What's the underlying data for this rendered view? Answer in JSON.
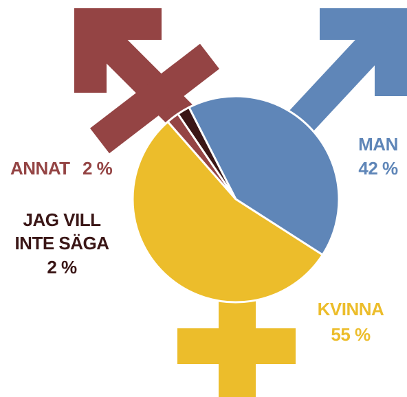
{
  "chart_data": {
    "type": "pie",
    "categories": [
      "MAN",
      "KVINNA",
      "ANNAT",
      "JAG VILL INTE SÄGA"
    ],
    "values": [
      42,
      55,
      2,
      2
    ],
    "value_labels": [
      "42 %",
      "55 %",
      "2 %",
      "2 %"
    ],
    "colors": [
      "#5f86b8",
      "#ecbd2b",
      "#944444",
      "#3a1616"
    ]
  }
}
